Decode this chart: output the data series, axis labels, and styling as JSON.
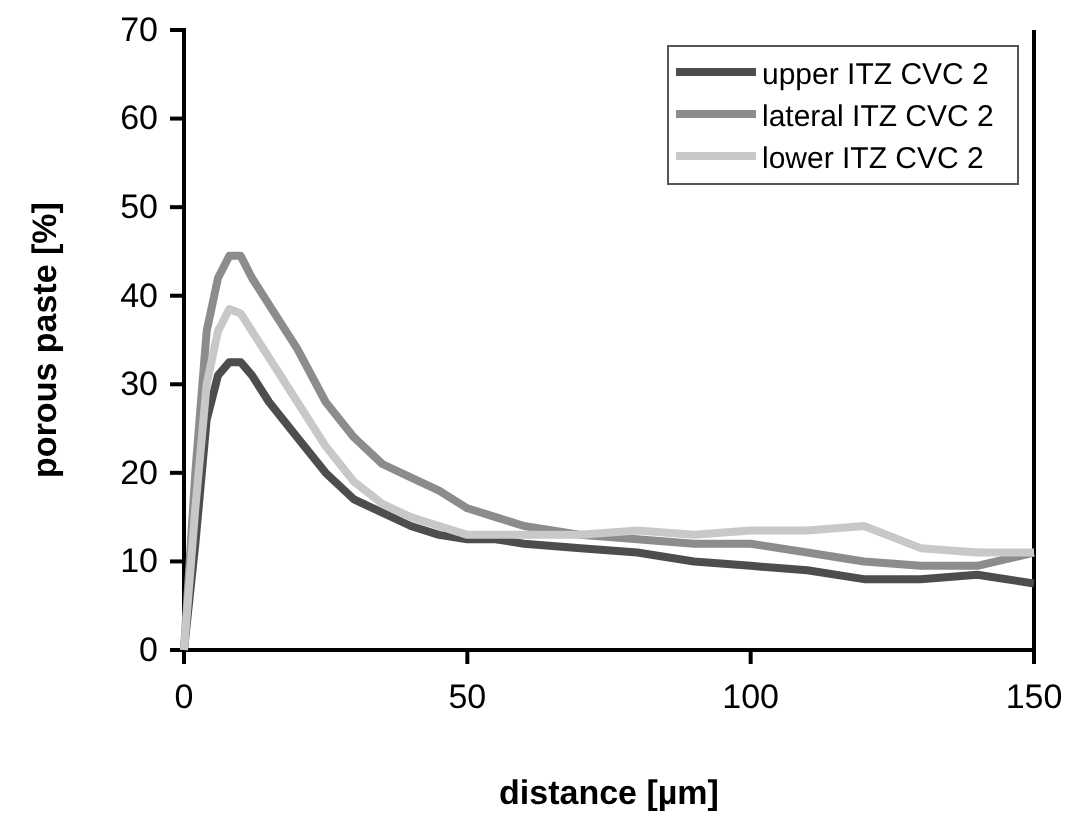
{
  "chart_data": {
    "type": "line",
    "xlabel": "distance [µm]",
    "ylabel": "porous paste [%]",
    "x": [
      0,
      2,
      4,
      6,
      8,
      10,
      12,
      15,
      20,
      25,
      30,
      35,
      40,
      45,
      50,
      55,
      60,
      70,
      80,
      90,
      100,
      110,
      120,
      130,
      140,
      150
    ],
    "xlim": [
      0,
      150
    ],
    "xticks": [
      0,
      50,
      100,
      150
    ],
    "ylim": [
      0,
      70
    ],
    "yticks": [
      0,
      10,
      20,
      30,
      40,
      50,
      60,
      70
    ],
    "grid": false,
    "legend": "top right",
    "marker": "none",
    "line_style": "solid",
    "series": [
      {
        "name": "upper ITZ CVC 2",
        "color": "#4d4d4d",
        "values": [
          0,
          12,
          26,
          31,
          32.5,
          32.5,
          31,
          28,
          24,
          20,
          17,
          15.5,
          14,
          13,
          12.5,
          12.5,
          12,
          11.5,
          11,
          10,
          9.5,
          9,
          8,
          8,
          8.5,
          7.5
        ]
      },
      {
        "name": "lateral ITZ CVC 2",
        "color": "#8c8c8c",
        "values": [
          0,
          20,
          36,
          42,
          44.5,
          44.5,
          42,
          39,
          34,
          28,
          24,
          21,
          19.5,
          18,
          16,
          15,
          14,
          13,
          12.5,
          12,
          12,
          11,
          10,
          9.5,
          9.5,
          11
        ]
      },
      {
        "name": "lower ITZ CVC 2",
        "color": "#c8c8c8",
        "values": [
          0,
          16,
          30,
          36,
          38.5,
          38,
          36,
          33,
          28,
          23,
          19,
          16.5,
          15,
          14,
          13,
          13,
          13,
          13,
          13.5,
          13,
          13.5,
          13.5,
          14,
          11.5,
          11,
          11
        ]
      }
    ]
  }
}
